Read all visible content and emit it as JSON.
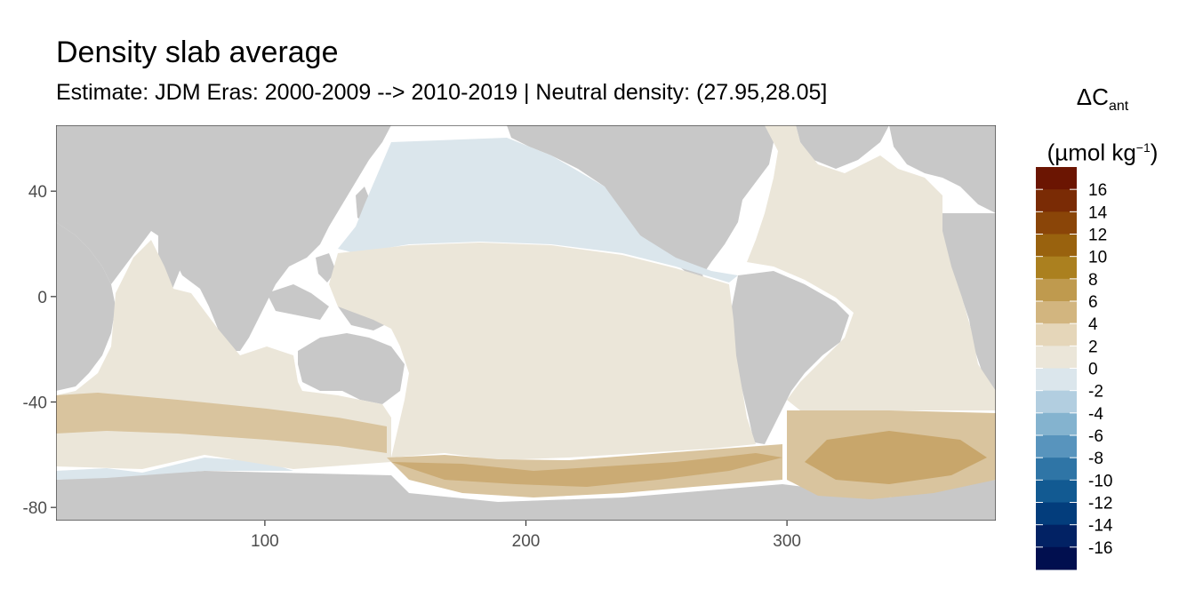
{
  "chart_data": {
    "type": "heatmap",
    "title": "Density slab average",
    "subtitle": "Estimate: JDM Eras: 2000-2009 --> 2010-2019 | Neutral density: (27.95,28.05]",
    "x_ticks": [
      100,
      200,
      300
    ],
    "y_ticks": [
      40,
      0,
      -40,
      -80
    ],
    "xlim": [
      20,
      380
    ],
    "ylim": [
      -85,
      65
    ],
    "legend": {
      "title_main": "ΔC",
      "title_sub": "ant",
      "unit_prefix": "(µmol kg",
      "unit_sup": "−1",
      "unit_suffix": ")",
      "labels": [
        "16",
        "14",
        "12",
        "10",
        "8",
        "6",
        "4",
        "2",
        "0",
        "-2",
        "-4",
        "-6",
        "-8",
        "-10",
        "-12",
        "-14",
        "-16"
      ],
      "colors": [
        "#6b1502",
        "#7a2b05",
        "#8a4508",
        "#99620e",
        "#ab801f",
        "#bf9a4e",
        "#d2b57f",
        "#e5d6b9",
        "#ebe6d9",
        "#dbe6ec",
        "#b2cee0",
        "#84b3cf",
        "#5894bd",
        "#2f75a6",
        "#125a92",
        "#033d7c",
        "#022264",
        "#010f4f"
      ]
    },
    "land_color": "#c8c8c8",
    "grid": false
  }
}
